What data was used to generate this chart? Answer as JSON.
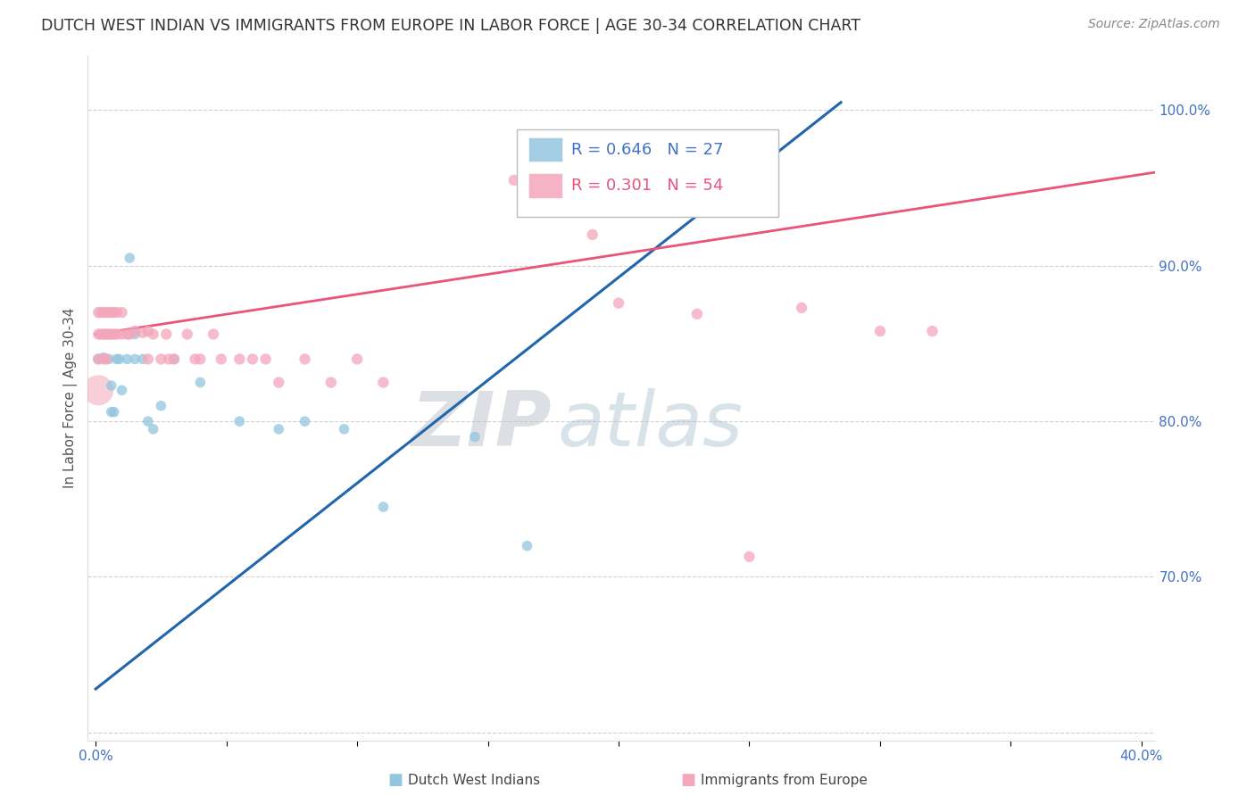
{
  "title": "DUTCH WEST INDIAN VS IMMIGRANTS FROM EUROPE IN LABOR FORCE | AGE 30-34 CORRELATION CHART",
  "source": "Source: ZipAtlas.com",
  "ylabel": "In Labor Force | Age 30-34",
  "xlim": [
    -0.003,
    0.405
  ],
  "ylim": [
    0.595,
    1.035
  ],
  "xticks": [
    0.0,
    0.05,
    0.1,
    0.15,
    0.2,
    0.25,
    0.3,
    0.35,
    0.4
  ],
  "xtick_labels": [
    "0.0%",
    "",
    "",
    "",
    "",
    "",
    "",
    "",
    "40.0%"
  ],
  "yticks": [
    0.6,
    0.7,
    0.8,
    0.9,
    1.0
  ],
  "ytick_labels": [
    "",
    "70.0%",
    "80.0%",
    "90.0%",
    "100.0%"
  ],
  "blue_R": 0.646,
  "blue_N": 27,
  "pink_R": 0.301,
  "pink_N": 54,
  "blue_color": "#92c5de",
  "pink_color": "#f4a6bb",
  "blue_line_color": "#2166ac",
  "pink_line_color": "#e8547a",
  "legend_label_blue": "Dutch West Indians",
  "legend_label_pink": "Immigrants from Europe",
  "blue_points": [
    [
      0.001,
      0.84
    ],
    [
      0.003,
      0.841
    ],
    [
      0.004,
      0.856
    ],
    [
      0.005,
      0.84
    ],
    [
      0.006,
      0.823
    ],
    [
      0.006,
      0.806
    ],
    [
      0.007,
      0.806
    ],
    [
      0.008,
      0.84
    ],
    [
      0.009,
      0.84
    ],
    [
      0.01,
      0.82
    ],
    [
      0.012,
      0.84
    ],
    [
      0.013,
      0.905
    ],
    [
      0.015,
      0.856
    ],
    [
      0.015,
      0.84
    ],
    [
      0.02,
      0.8
    ],
    [
      0.022,
      0.795
    ],
    [
      0.025,
      0.81
    ],
    [
      0.03,
      0.84
    ],
    [
      0.04,
      0.825
    ],
    [
      0.055,
      0.8
    ],
    [
      0.07,
      0.795
    ],
    [
      0.08,
      0.8
    ],
    [
      0.095,
      0.795
    ],
    [
      0.11,
      0.745
    ],
    [
      0.145,
      0.79
    ],
    [
      0.165,
      0.72
    ],
    [
      0.018,
      0.84
    ]
  ],
  "blue_size": 70,
  "pink_points": [
    [
      0.001,
      0.84
    ],
    [
      0.001,
      0.856
    ],
    [
      0.001,
      0.87
    ],
    [
      0.002,
      0.87
    ],
    [
      0.002,
      0.856
    ],
    [
      0.003,
      0.87
    ],
    [
      0.003,
      0.856
    ],
    [
      0.003,
      0.84
    ],
    [
      0.004,
      0.87
    ],
    [
      0.004,
      0.856
    ],
    [
      0.004,
      0.84
    ],
    [
      0.005,
      0.87
    ],
    [
      0.005,
      0.856
    ],
    [
      0.006,
      0.87
    ],
    [
      0.006,
      0.856
    ],
    [
      0.007,
      0.87
    ],
    [
      0.007,
      0.856
    ],
    [
      0.008,
      0.87
    ],
    [
      0.008,
      0.856
    ],
    [
      0.01,
      0.87
    ],
    [
      0.01,
      0.856
    ],
    [
      0.012,
      0.856
    ],
    [
      0.013,
      0.856
    ],
    [
      0.015,
      0.858
    ],
    [
      0.018,
      0.857
    ],
    [
      0.02,
      0.858
    ],
    [
      0.02,
      0.84
    ],
    [
      0.022,
      0.856
    ],
    [
      0.025,
      0.84
    ],
    [
      0.027,
      0.856
    ],
    [
      0.028,
      0.84
    ],
    [
      0.03,
      0.84
    ],
    [
      0.035,
      0.856
    ],
    [
      0.038,
      0.84
    ],
    [
      0.04,
      0.84
    ],
    [
      0.045,
      0.856
    ],
    [
      0.048,
      0.84
    ],
    [
      0.055,
      0.84
    ],
    [
      0.06,
      0.84
    ],
    [
      0.065,
      0.84
    ],
    [
      0.07,
      0.825
    ],
    [
      0.08,
      0.84
    ],
    [
      0.09,
      0.825
    ],
    [
      0.1,
      0.84
    ],
    [
      0.11,
      0.825
    ],
    [
      0.16,
      0.955
    ],
    [
      0.19,
      0.92
    ],
    [
      0.2,
      0.876
    ],
    [
      0.23,
      0.869
    ],
    [
      0.25,
      0.713
    ],
    [
      0.27,
      0.873
    ],
    [
      0.3,
      0.858
    ],
    [
      0.32,
      0.858
    ]
  ],
  "pink_size": 80,
  "pink_large_point": [
    0.001,
    0.82
  ],
  "pink_large_size": 600,
  "blue_line_x0": 0.0,
  "blue_line_x1": 0.285,
  "blue_line_y0": 0.628,
  "blue_line_y1": 1.005,
  "pink_line_x0": 0.0,
  "pink_line_x1": 0.405,
  "pink_line_y0": 0.856,
  "pink_line_y1": 0.96,
  "watermark_zip": "ZIP",
  "watermark_atlas": "atlas",
  "background_color": "#ffffff",
  "grid_color": "#cccccc",
  "tick_color": "#4472c4",
  "axis_label_color": "#555555",
  "title_color": "#333333"
}
